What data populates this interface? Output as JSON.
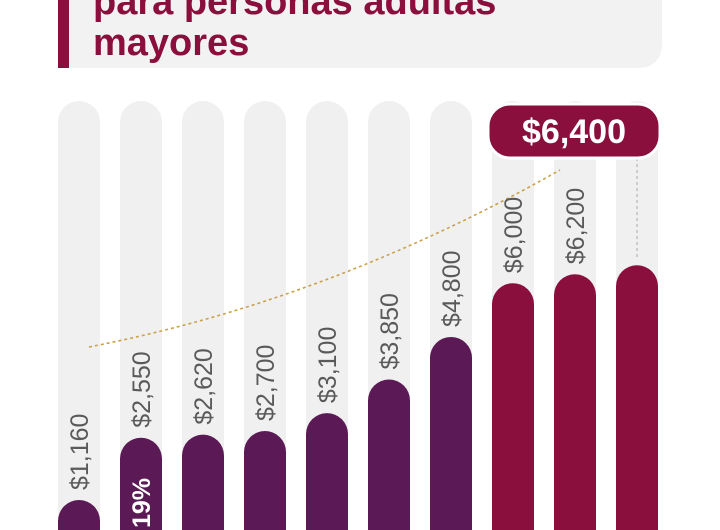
{
  "header": {
    "title_line1": "para personas adultas",
    "title_line2": "mayores"
  },
  "colors": {
    "purple": "#5b1a55",
    "maroon": "#8a0f3c",
    "track": "#f0f0f0",
    "trend": "#c9a24a"
  },
  "chart_data": {
    "type": "bar",
    "orientation": "vertical",
    "categories": [
      "",
      "",
      "",
      "",
      "",
      "",
      "",
      "",
      "",
      ""
    ],
    "values": [
      1160,
      2550,
      2620,
      2700,
      3100,
      3850,
      4800,
      6000,
      6200,
      6400
    ],
    "value_labels": [
      "$1,160",
      "$2,550",
      "$2,620",
      "$2,700",
      "$3,100",
      "$3,850",
      "$4,800",
      "$6,000",
      "$6,200",
      "$6,400"
    ],
    "bar_colors": [
      "#5b1a55",
      "#5b1a55",
      "#5b1a55",
      "#5b1a55",
      "#5b1a55",
      "#5b1a55",
      "#5b1a55",
      "#8a0f3c",
      "#8a0f3c",
      "#8a0f3c"
    ],
    "highlight_label": "$6,400",
    "annotation": "19%",
    "trend_line": true,
    "grid": false
  }
}
